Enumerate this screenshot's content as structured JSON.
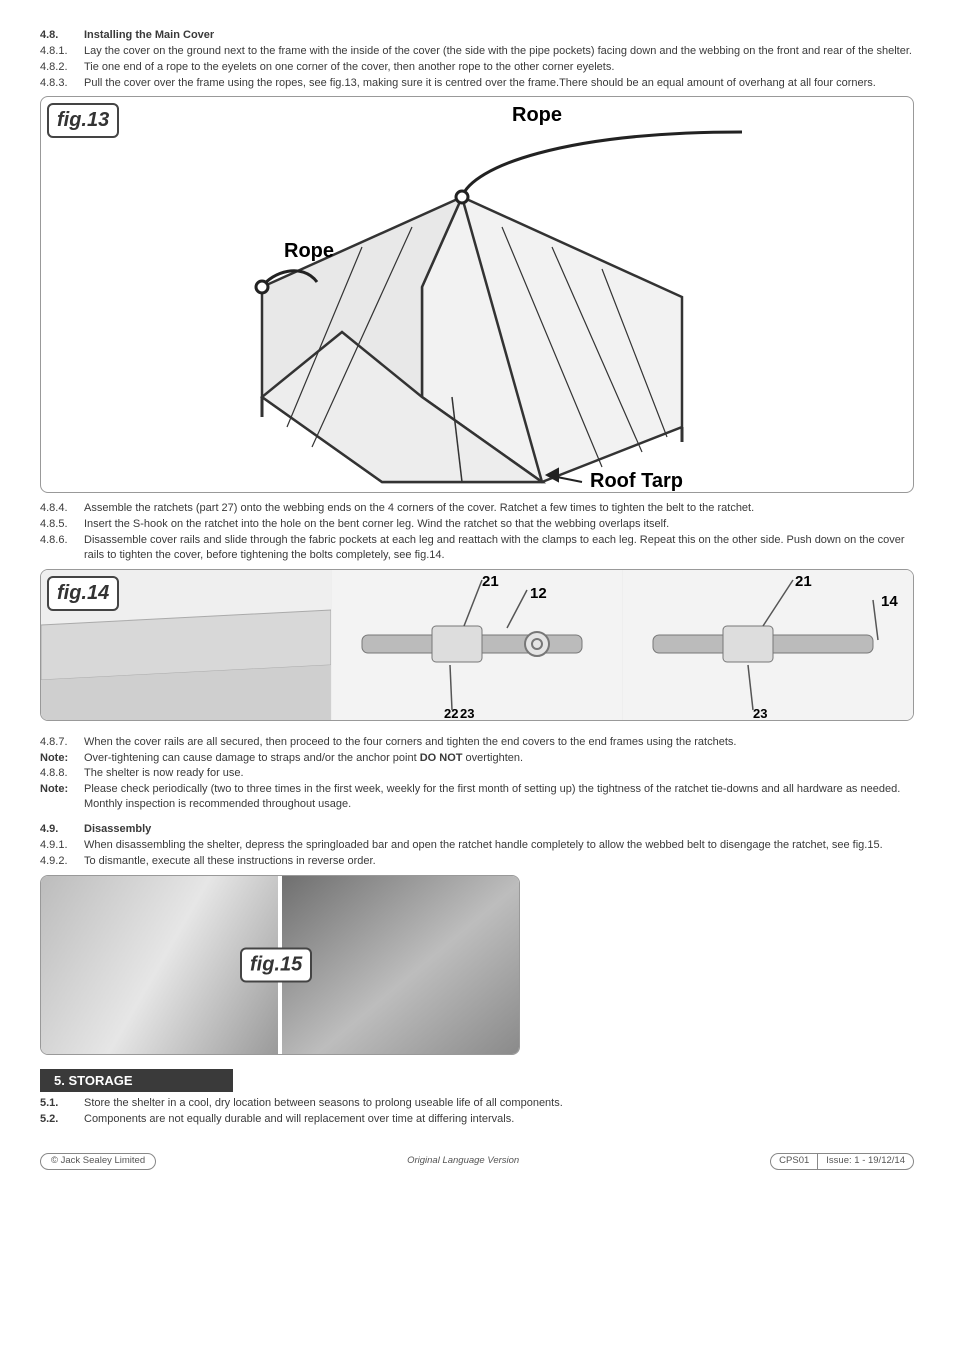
{
  "s48": {
    "num": "4.8.",
    "title": "Installing the Main Cover",
    "items": [
      {
        "n": "4.8.1.",
        "t": "Lay the cover on the ground next to the frame with the inside of the cover (the side with the pipe pockets) facing down and the webbing on the front and rear of the shelter."
      },
      {
        "n": "4.8.2.",
        "t": "Tie one end of a rope to the eyelets on one corner of the cover, then another rope to the other corner eyelets."
      },
      {
        "n": "4.8.3.",
        "t": "Pull the cover over the frame using the ropes, see fig.13, making sure it is centred over the frame.There should be an equal amount of overhang at all four corners."
      }
    ],
    "items2": [
      {
        "n": "4.8.4.",
        "t": "Assemble the ratchets (part 27) onto the webbing ends on the 4 corners of the cover. Ratchet a few times to tighten the belt to the ratchet."
      },
      {
        "n": "4.8.5.",
        "t": "Insert the S-hook on the ratchet into the hole on the bent corner leg. Wind the ratchet so that the webbing overlaps itself."
      },
      {
        "n": "4.8.6.",
        "t": "Disassemble cover rails and slide through the fabric pockets at each leg and reattach with the clamps to each leg.  Repeat this on the other side. Push down on the cover rails to tighten the cover, before tightening the bolts completely, see fig.14."
      }
    ],
    "items3": [
      {
        "n": "4.8.7.",
        "t": "When the cover rails are all secured, then proceed to the four corners and tighten the end covers to the end frames using the ratchets."
      },
      {
        "n": "Note:",
        "bold": true,
        "t_pre": "Over-tightening can cause damage to straps and/or the anchor point ",
        "t_bold": "DO NOT",
        "t_post": " overtighten."
      },
      {
        "n": "4.8.8.",
        "t": "The shelter is now ready for use."
      },
      {
        "n": "Note:",
        "bold": true,
        "t": "Please check periodically (two to three times in the first week, weekly for the first month of setting up) the tightness of the ratchet tie-downs and all hardware as needed. Monthly inspection is recommended throughout usage."
      }
    ]
  },
  "s49": {
    "num": "4.9.",
    "title": "Disassembly",
    "items": [
      {
        "n": "4.9.1.",
        "t": "When disassembling the shelter, depress the springloaded bar and open the ratchet handle completely to allow the webbed belt to disengage the ratchet, see fig.15."
      },
      {
        "n": "4.9.2.",
        "t": "To dismantle, execute all these instructions in reverse order."
      }
    ]
  },
  "fig13": {
    "label": "fig.13",
    "ropeTop": "Rope",
    "ropeLeft": "Rope",
    "roofTarp": "Roof Tarp"
  },
  "fig14": {
    "label": "fig.14",
    "callouts": {
      "a": "21",
      "b": "12",
      "c": "22",
      "d": "23",
      "e": "21",
      "f": "14",
      "g": "23"
    }
  },
  "fig15": {
    "label": "fig.15"
  },
  "storage": {
    "bar": "5.  STORAGE",
    "items": [
      {
        "n": "5.1.",
        "t": "Store the shelter in a cool, dry location between seasons to prolong useable life of all components."
      },
      {
        "n": "5.2.",
        "t": "Components are not equally durable and will replacement over time at differing intervals."
      }
    ]
  },
  "footer": {
    "left": "© Jack Sealey Limited",
    "center": "Original Language Version",
    "rightA": "CPS01",
    "rightB": "Issue: 1 - 19/12/14"
  }
}
